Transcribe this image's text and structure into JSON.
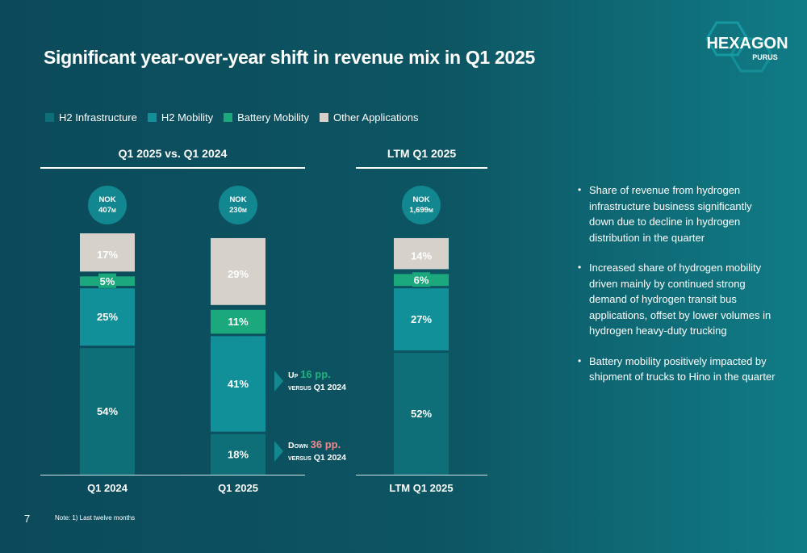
{
  "title": "Significant year-over-year shift in revenue mix in Q1 2025",
  "logo": {
    "name": "HEXAGON",
    "sub": "PURUS"
  },
  "legend": [
    {
      "label": "H2 Infrastructure",
      "color": "#0e6f78"
    },
    {
      "label": "H2 Mobility",
      "color": "#11909a"
    },
    {
      "label": "Battery  Mobility",
      "color": "#1aa87c"
    },
    {
      "label": "Other Applications",
      "color": "#d6d1cb"
    }
  ],
  "sections": {
    "left": "Q1 2025 vs. Q1 2024",
    "right": "LTM Q1 2025"
  },
  "chart_data": {
    "type": "bar",
    "stacked": true,
    "categories": [
      "Q1 2024",
      "Q1 2025",
      "LTM Q1 2025"
    ],
    "totals": [
      {
        "line1": "NOK",
        "line2": "407",
        "unit": "M"
      },
      {
        "line1": "NOK",
        "line2": "230",
        "unit": "M"
      },
      {
        "line1": "NOK",
        "line2": "1,699",
        "unit": "M"
      }
    ],
    "series": [
      {
        "name": "H2 Infrastructure",
        "color": "#0e6f78",
        "values": [
          54,
          18,
          52
        ]
      },
      {
        "name": "H2 Mobility",
        "color": "#11909a",
        "values": [
          25,
          41,
          27
        ]
      },
      {
        "name": "Battery  Mobility",
        "color": "#1aa87c",
        "values": [
          5,
          11,
          6
        ]
      },
      {
        "name": "Other Applications",
        "color": "#d6d1cb",
        "values": [
          17,
          29,
          14
        ]
      }
    ],
    "value_suffix": "%",
    "ylim": [
      0,
      100
    ],
    "annotations": [
      {
        "prefix": "Up",
        "value": "16 pp.",
        "suffix": "versus Q1 2024",
        "color": "#1fb27f"
      },
      {
        "prefix": "Down",
        "value": "36 pp.",
        "suffix": "versus Q1 2024",
        "color": "#f08a8a"
      }
    ]
  },
  "bullets": [
    "Share of revenue from hydrogen infrastructure business significantly down due to decline in hydrogen distribution in the quarter",
    "Increased share of hydrogen mobility driven mainly by continued strong demand of hydrogen transit bus applications, offset by lower volumes in hydrogen heavy-duty trucking",
    "Battery mobility positively impacted by shipment of trucks to Hino in the quarter"
  ],
  "page_number": "7",
  "note": "Note: 1) Last twelve months"
}
